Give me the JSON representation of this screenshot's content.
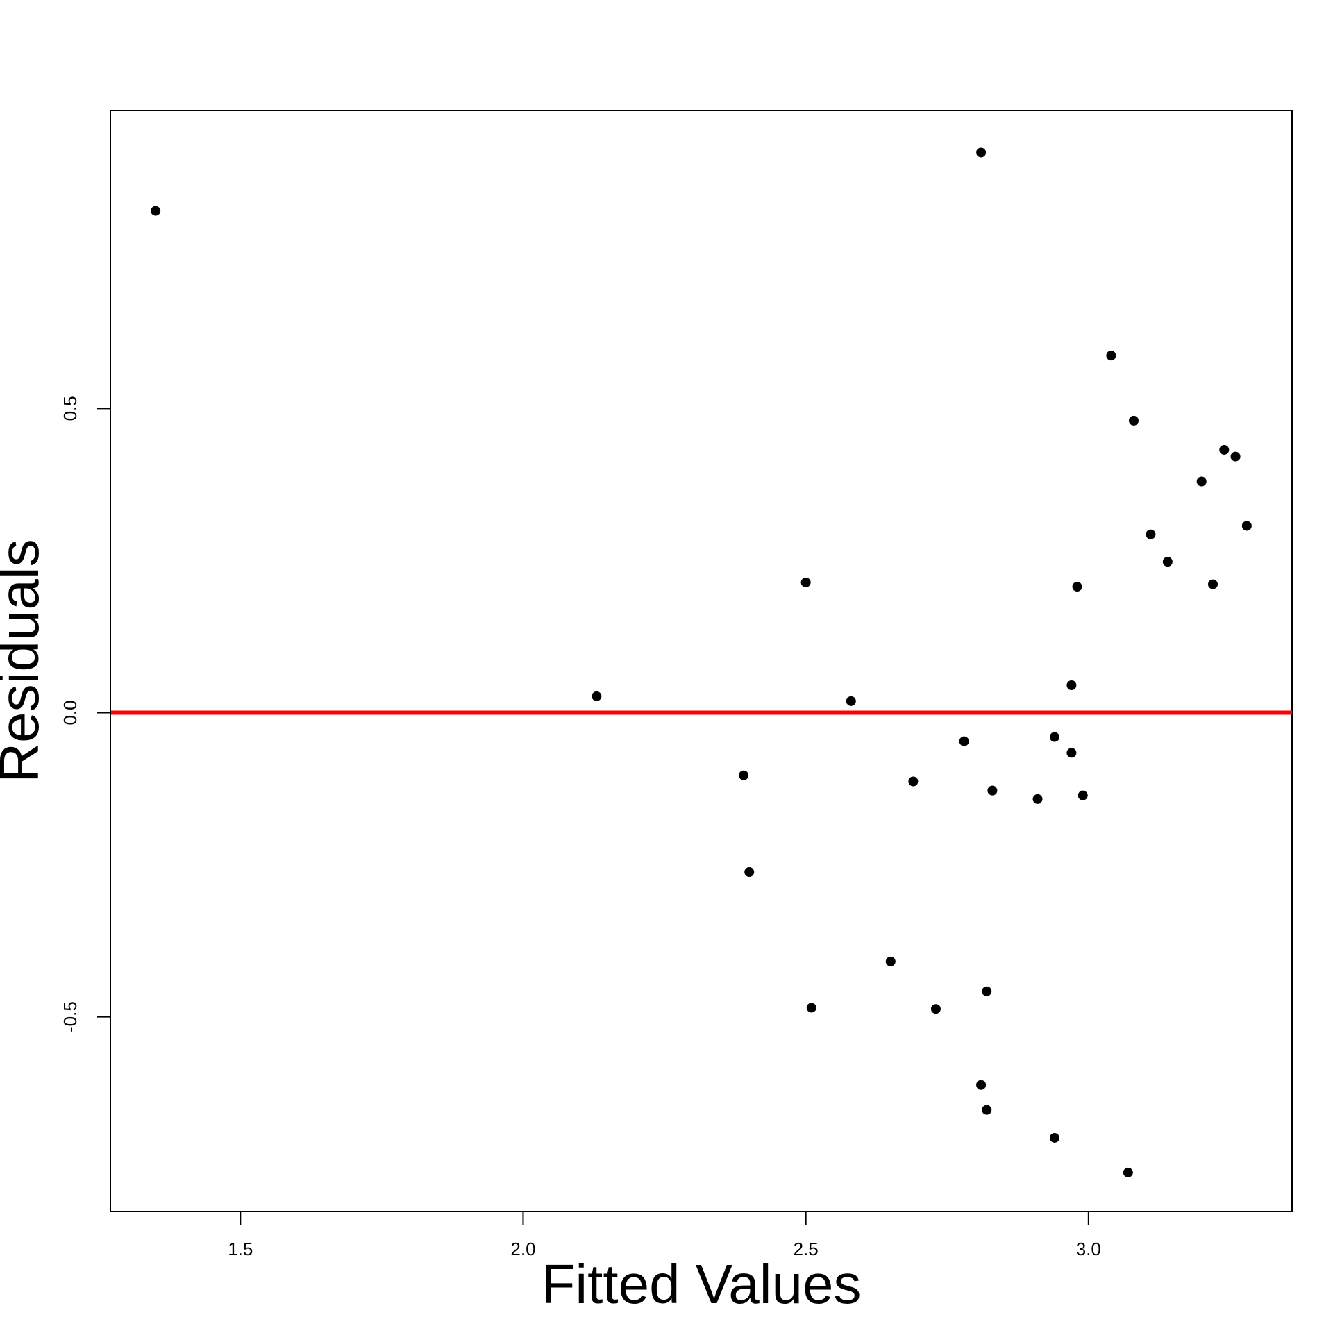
{
  "chart_data": {
    "type": "scatter",
    "title": "",
    "xlabel": "Fitted Values",
    "ylabel": "Residuals",
    "xlim": [
      1.27,
      3.36
    ],
    "ylim": [
      -0.82,
      0.99
    ],
    "xticks": [
      1.5,
      2.0,
      2.5,
      3.0
    ],
    "xtick_labels": [
      "1.5",
      "2.0",
      "2.5",
      "3.0"
    ],
    "yticks": [
      -0.5,
      0.0,
      0.5
    ],
    "ytick_labels": [
      "-0.5",
      "0.0",
      "0.5"
    ],
    "grid": false,
    "reference_line": {
      "y": 0.0,
      "color": "#ff0000"
    },
    "point_color": "#000000",
    "series": [
      {
        "x": [
          1.35,
          2.81,
          3.04,
          3.08,
          3.24,
          3.26,
          3.2,
          3.28,
          3.11,
          3.14,
          3.22,
          2.5,
          2.98,
          2.13,
          2.58,
          2.97,
          2.78,
          2.94,
          2.39,
          2.69,
          2.83,
          2.91,
          2.97,
          2.99,
          2.4,
          2.65,
          2.51,
          2.73,
          2.82,
          2.81,
          2.82,
          2.94,
          3.07
        ],
        "y": [
          0.825,
          0.921,
          0.587,
          0.48,
          0.432,
          0.421,
          0.38,
          0.307,
          0.293,
          0.248,
          0.211,
          0.214,
          0.207,
          0.027,
          0.019,
          0.045,
          -0.047,
          -0.04,
          -0.103,
          -0.113,
          -0.128,
          -0.142,
          -0.066,
          -0.136,
          -0.262,
          -0.409,
          -0.485,
          -0.487,
          -0.458,
          -0.612,
          -0.653,
          -0.699,
          -0.756
        ]
      }
    ]
  }
}
